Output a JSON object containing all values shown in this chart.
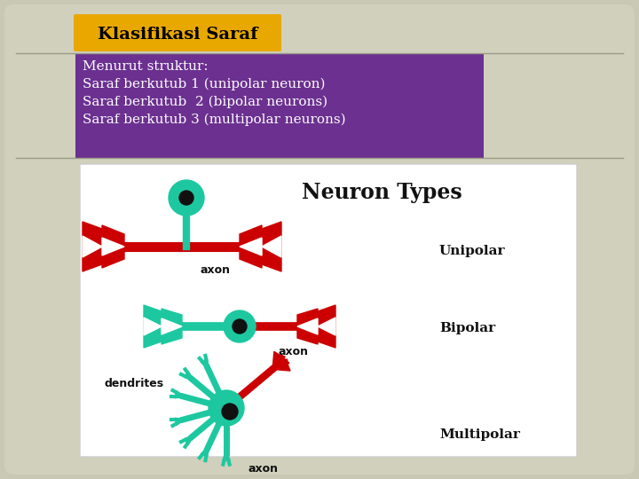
{
  "bg_color": "#c8c8b4",
  "slide_bg": "#d0d0bc",
  "title_box_color": "#e8a800",
  "title_text": "Klasifikasi Saraf",
  "title_text_color": "#000000",
  "purple_box_color": "#6B3090",
  "purple_text_color": "#ffffff",
  "purple_lines": [
    "Menurut struktur:",
    "Saraf berkutub 1 (unipolar neuron)",
    "Saraf berkutub  2 (bipolar neurons)",
    "Saraf berkutub 3 (multipolar neurons)"
  ],
  "white_box_color": "#ffffff",
  "neuron_title": "Neuron Types",
  "neuron_labels": [
    "Unipolar",
    "Bipolar",
    "Multipolar"
  ],
  "axon_label": "axon",
  "dendrites_label": "dendrites",
  "teal_color": "#1DC8A0",
  "red_color": "#CC0000",
  "dark_color": "#111111",
  "line_color": "#999988"
}
